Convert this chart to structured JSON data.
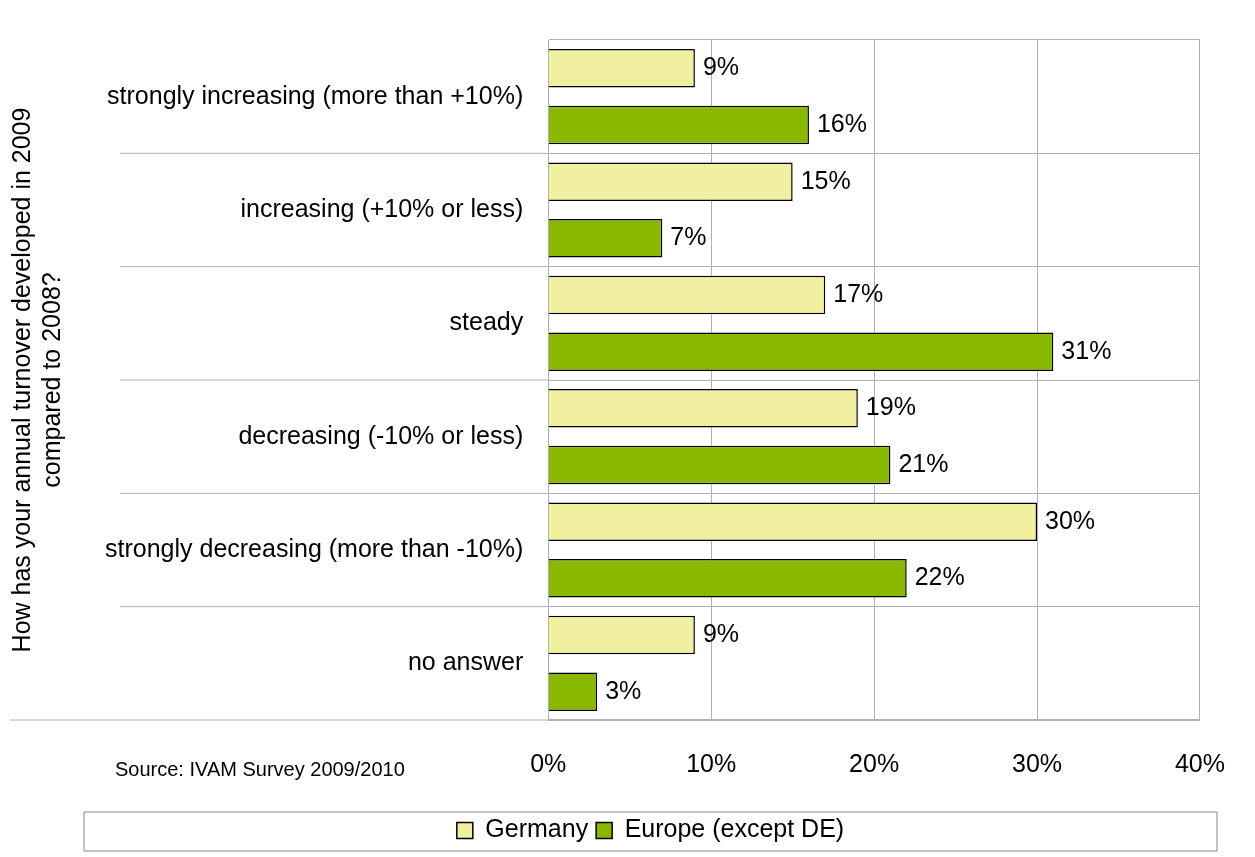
{
  "chart_data": {
    "type": "bar",
    "orientation": "horizontal",
    "ylabel": "How has your annual turnover developed in 2009 compared to 2008?",
    "categories": [
      "strongly increasing (more than +10%)",
      "increasing (+10% or less)",
      "steady",
      "decreasing (-10% or less)",
      "strongly decreasing (more than -10%)",
      "no answer"
    ],
    "series": [
      {
        "name": "Germany",
        "color": "#f0f0a0",
        "values": [
          9,
          15,
          17,
          19,
          30,
          9
        ],
        "value_labels": [
          "9%",
          "15%",
          "17%",
          "19%",
          "30%",
          "9%"
        ]
      },
      {
        "name": "Europe (except DE)",
        "color": "#88b800",
        "values": [
          16,
          7,
          31,
          21,
          22,
          3
        ],
        "value_labels": [
          "16%",
          "7%",
          "31%",
          "21%",
          "22%",
          "3%"
        ]
      }
    ],
    "xlim": [
      0,
      40
    ],
    "xticks": [
      {
        "value": 0,
        "label": "0%"
      },
      {
        "value": 10,
        "label": "10%"
      },
      {
        "value": 20,
        "label": "20%"
      },
      {
        "value": 30,
        "label": "30%"
      },
      {
        "value": 40,
        "label": "40%"
      }
    ],
    "grid": true,
    "legend": "bottom",
    "annotations": [
      "Source: IVAM Survey 2009/2010"
    ]
  }
}
